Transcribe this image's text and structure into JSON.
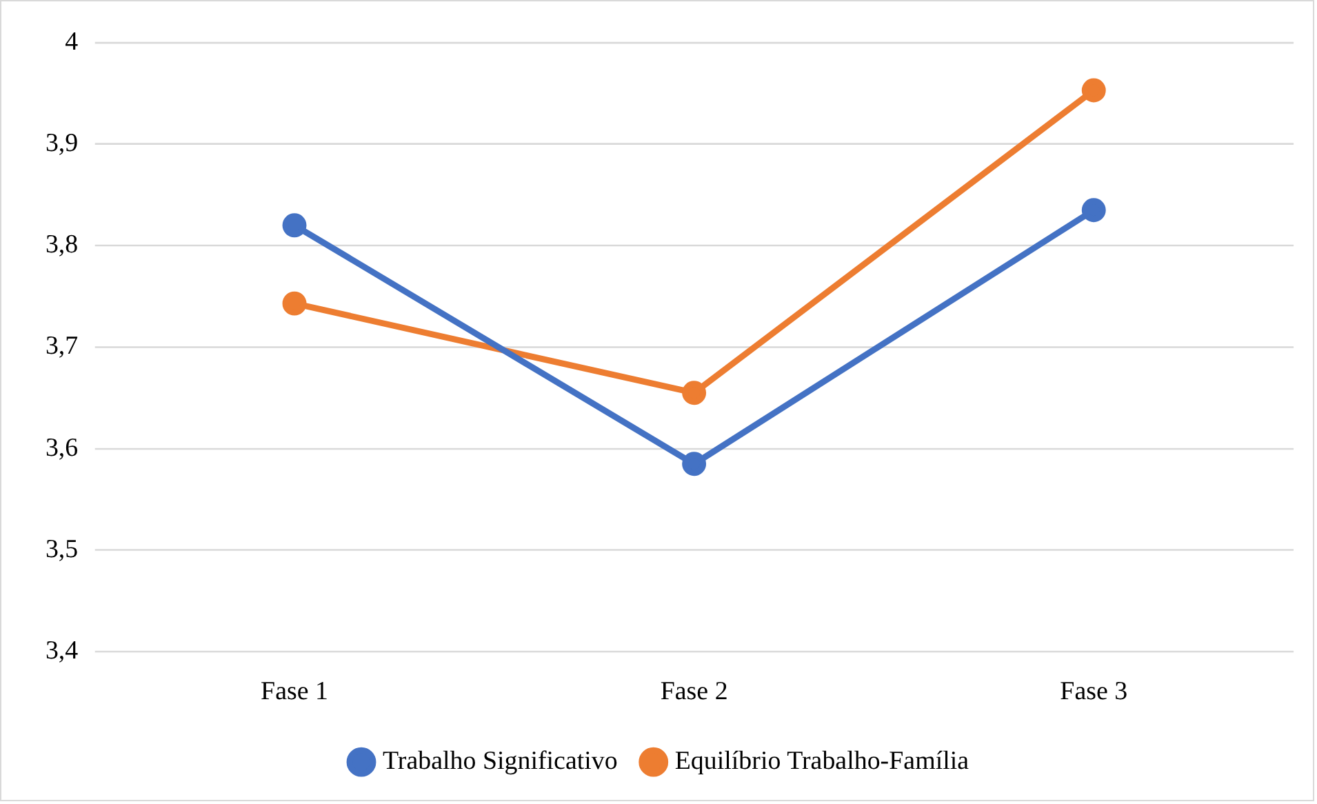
{
  "chart_data": {
    "type": "line",
    "categories": [
      "Fase 1",
      "Fase 2",
      "Fase 3"
    ],
    "series": [
      {
        "name": "Trabalho Significativo",
        "color": "#4472c4",
        "values": [
          3.82,
          3.585,
          3.835
        ]
      },
      {
        "name": "Equilíbrio Trabalho-Família",
        "color": "#ed7d31",
        "values": [
          3.743,
          3.655,
          3.953
        ]
      }
    ],
    "ylim": [
      3.4,
      4
    ],
    "yticks": [
      {
        "value": 3.4,
        "label": "3,4"
      },
      {
        "value": 3.5,
        "label": "3,5"
      },
      {
        "value": 3.6,
        "label": "3,6"
      },
      {
        "value": 3.7,
        "label": "3,7"
      },
      {
        "value": 3.8,
        "label": "3,8"
      },
      {
        "value": 3.9,
        "label": "3,9"
      },
      4
    ],
    "grid": "y",
    "legend": "bottom",
    "marker": "circle",
    "line_style": "solid"
  }
}
